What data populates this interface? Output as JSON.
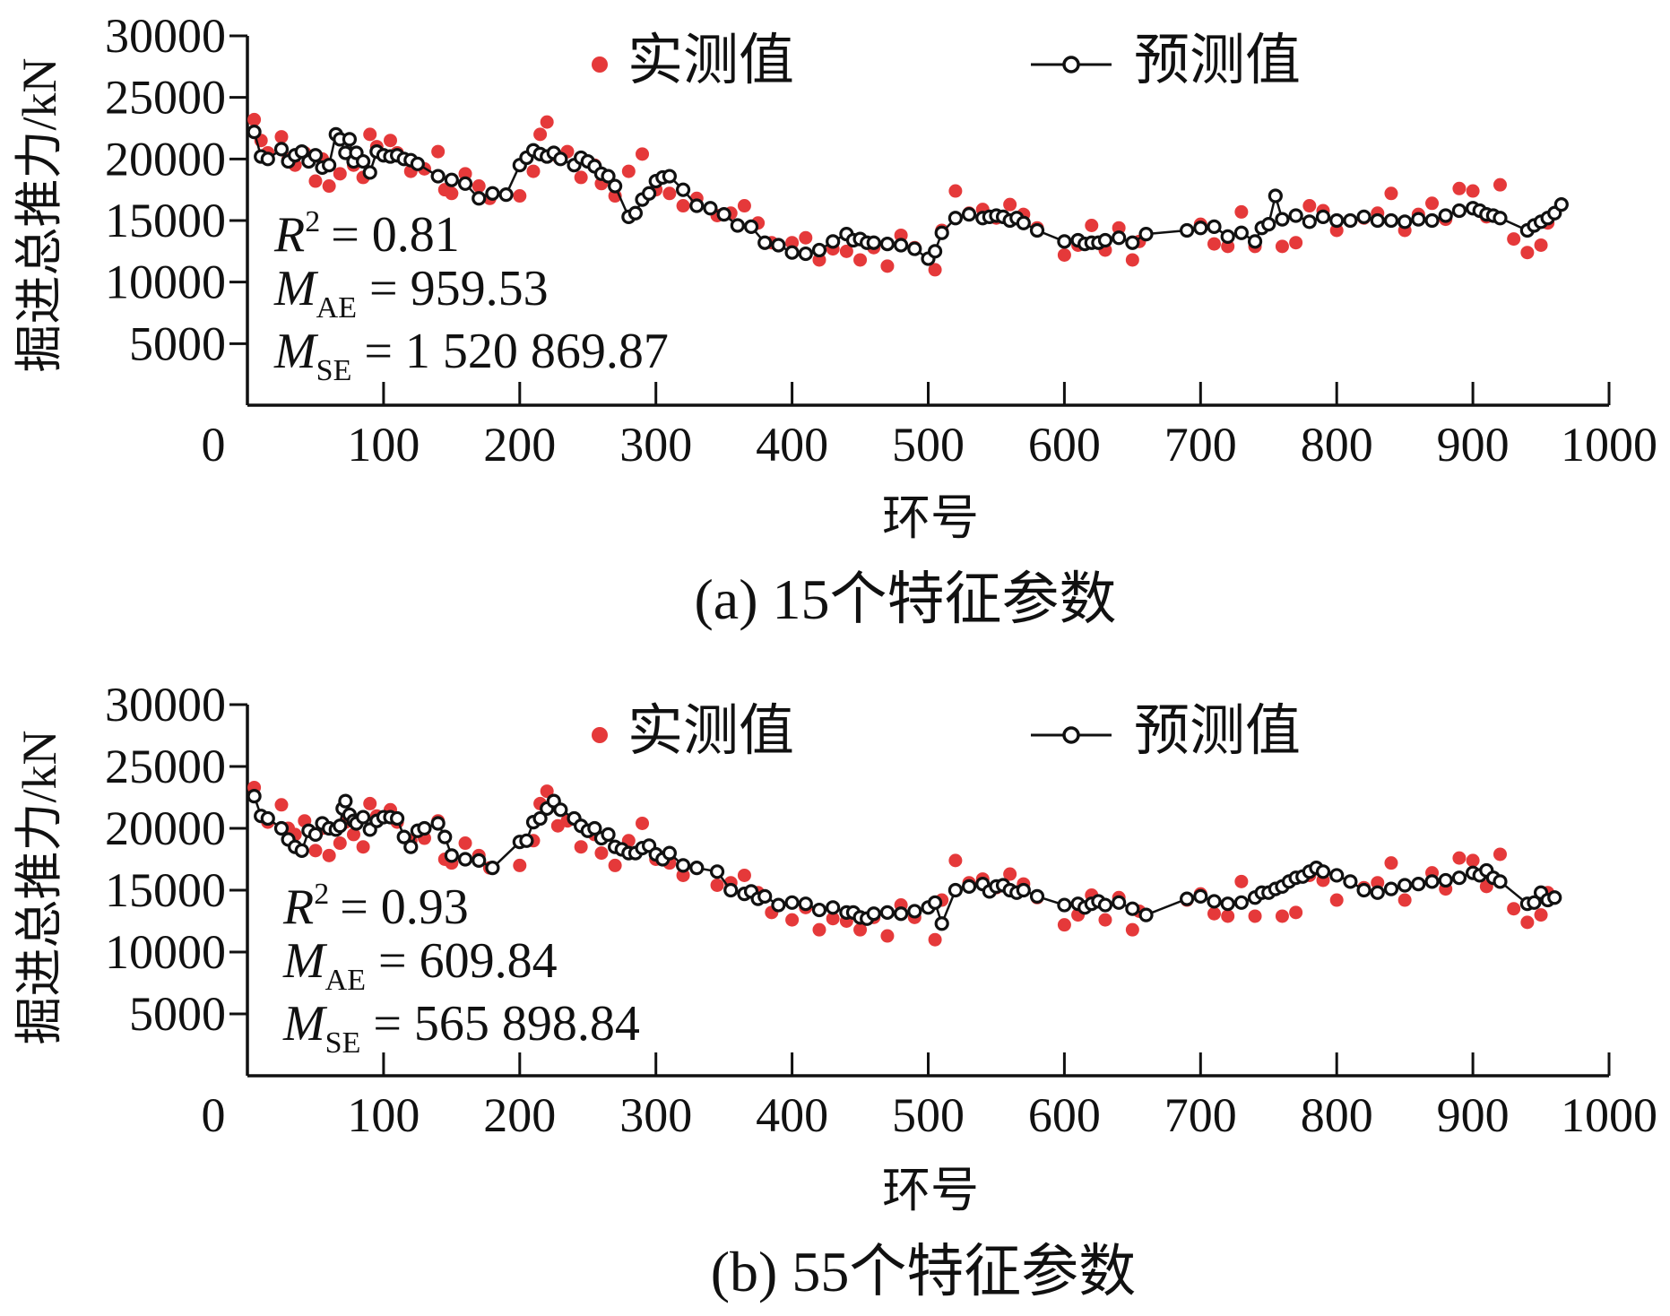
{
  "figure": {
    "y_axis_label": "掘进总推力/kN",
    "x_axis_label": "环号",
    "legend": {
      "measured": "实测值",
      "predicted": "预测值"
    },
    "colors": {
      "measured": "#e5393a",
      "predicted_line": "#111111",
      "predicted_fill": "#ffffff"
    }
  },
  "chart_data": [
    {
      "type": "scatter",
      "caption": "(a)  15个特征参数",
      "xlabel": "环号",
      "ylabel": "掘进总推力/kN",
      "xlim": [
        0,
        1000
      ],
      "ylim": [
        0,
        30000
      ],
      "x_ticks": [
        "0",
        "100",
        "200",
        "300",
        "400",
        "500",
        "600",
        "700",
        "800",
        "900",
        "1000"
      ],
      "y_ticks": [
        "5000",
        "10000",
        "15000",
        "20000",
        "25000",
        "30000"
      ],
      "stats": {
        "r2_label": "R",
        "r2_sup": "2",
        "r2_value": "= 0.81",
        "mae_label": "M",
        "mae_sub": "AE",
        "mae_value": "= 959.53",
        "mse_label": "M",
        "mse_sub": "SE",
        "mse_value": "= 1 520 869.87"
      },
      "series": [
        {
          "name": "实测值",
          "kind": "points",
          "x": [
            5,
            10,
            15,
            25,
            30,
            35,
            42,
            50,
            55,
            60,
            68,
            72,
            78,
            85,
            90,
            95,
            105,
            110,
            120,
            130,
            140,
            145,
            150,
            160,
            170,
            178,
            200,
            210,
            215,
            220,
            228,
            235,
            245,
            255,
            260,
            270,
            280,
            290,
            300,
            310,
            320,
            330,
            345,
            355,
            365,
            375,
            385,
            400,
            410,
            420,
            430,
            440,
            450,
            460,
            470,
            480,
            490,
            505,
            510,
            520,
            530,
            540,
            550,
            560,
            570,
            580,
            600,
            610,
            620,
            630,
            640,
            650,
            655,
            690,
            700,
            710,
            720,
            730,
            740,
            760,
            770,
            780,
            790,
            800,
            820,
            830,
            840,
            850,
            860,
            870,
            880,
            890,
            900,
            910,
            920,
            930,
            940,
            950,
            955
          ],
          "y": [
            23200,
            21500,
            20500,
            21800,
            20000,
            19500,
            20500,
            18200,
            20000,
            17800,
            18800,
            20500,
            19500,
            18500,
            22000,
            21000,
            21500,
            20500,
            19000,
            19200,
            20600,
            17500,
            17200,
            18800,
            17800,
            16800,
            17000,
            19000,
            22000,
            23000,
            20200,
            20600,
            18500,
            19500,
            18000,
            17000,
            19000,
            20400,
            17500,
            17200,
            16200,
            16800,
            15400,
            15600,
            16200,
            14800,
            13200,
            13200,
            13600,
            11800,
            12700,
            12500,
            11800,
            12800,
            11300,
            13800,
            12800,
            11000,
            14200,
            17400,
            15600,
            15900,
            15200,
            16300,
            15500,
            14400,
            12200,
            13000,
            14600,
            12600,
            14400,
            11800,
            13300,
            14200,
            14700,
            13100,
            12900,
            15700,
            12900,
            12900,
            13200,
            16200,
            15800,
            14200,
            15200,
            15600,
            17200,
            14200,
            15500,
            16400,
            15100,
            17600,
            17400,
            15300,
            17900,
            13500,
            12400,
            13000,
            14800
          ],
          "dot_radius": 7.5
        },
        {
          "name": "预测值",
          "kind": "line",
          "x": [
            5,
            10,
            15,
            25,
            30,
            35,
            40,
            45,
            50,
            55,
            60,
            65,
            68,
            72,
            75,
            78,
            80,
            85,
            90,
            95,
            100,
            105,
            110,
            115,
            120,
            125,
            140,
            150,
            160,
            170,
            180,
            190,
            200,
            205,
            210,
            215,
            220,
            225,
            230,
            240,
            245,
            250,
            255,
            260,
            265,
            270,
            280,
            285,
            290,
            295,
            300,
            305,
            310,
            320,
            330,
            340,
            350,
            360,
            370,
            380,
            390,
            400,
            410,
            420,
            430,
            440,
            445,
            450,
            455,
            460,
            470,
            480,
            490,
            500,
            505,
            510,
            520,
            530,
            540,
            545,
            550,
            555,
            560,
            565,
            570,
            580,
            600,
            610,
            615,
            620,
            625,
            630,
            640,
            650,
            660,
            690,
            700,
            710,
            720,
            730,
            740,
            745,
            750,
            755,
            760,
            770,
            780,
            790,
            800,
            810,
            820,
            830,
            840,
            850,
            860,
            870,
            880,
            890,
            900,
            905,
            910,
            915,
            920,
            940,
            945,
            950,
            955,
            960,
            965
          ],
          "y": [
            22200,
            20200,
            20000,
            20800,
            19800,
            20300,
            20600,
            19800,
            20300,
            19300,
            19500,
            22000,
            21600,
            20500,
            21600,
            19800,
            20500,
            19800,
            18900,
            20600,
            20300,
            20200,
            20300,
            20000,
            19900,
            19600,
            18600,
            18300,
            18000,
            16800,
            17200,
            17100,
            19500,
            20100,
            20700,
            20400,
            20200,
            20500,
            20000,
            19500,
            20100,
            19800,
            19400,
            18800,
            18600,
            17800,
            15300,
            15600,
            16700,
            17200,
            18200,
            18500,
            18600,
            17500,
            16200,
            16000,
            15500,
            14600,
            14500,
            13200,
            13000,
            12400,
            12300,
            12600,
            13300,
            13900,
            13400,
            13500,
            13200,
            13200,
            13100,
            13000,
            12700,
            11900,
            12500,
            14000,
            15200,
            15500,
            15200,
            15300,
            15400,
            15300,
            15000,
            15200,
            14800,
            14200,
            13300,
            13400,
            13100,
            13200,
            13200,
            13400,
            13600,
            13200,
            13900,
            14200,
            14400,
            14500,
            13700,
            14000,
            13300,
            14400,
            14700,
            17000,
            15100,
            15400,
            14900,
            15300,
            15000,
            15000,
            15300,
            15000,
            15000,
            14900,
            15100,
            15000,
            15400,
            15800,
            16000,
            15800,
            15500,
            15400,
            15200,
            14200,
            14600,
            14900,
            15200,
            15600,
            16300
          ],
          "marker_radius": 6.5
        }
      ]
    },
    {
      "type": "scatter",
      "caption": "(b)  55个特征参数",
      "xlabel": "环号",
      "ylabel": "掘进总推力/kN",
      "xlim": [
        0,
        1000
      ],
      "ylim": [
        0,
        30000
      ],
      "x_ticks": [
        "0",
        "100",
        "200",
        "300",
        "400",
        "500",
        "600",
        "700",
        "800",
        "900",
        "1000"
      ],
      "y_ticks": [
        "5000",
        "10000",
        "15000",
        "20000",
        "25000",
        "30000"
      ],
      "stats": {
        "r2_label": "R",
        "r2_sup": "2",
        "r2_value": "= 0.93",
        "mae_label": "M",
        "mae_sub": "AE",
        "mae_value": "= 609.84",
        "mse_label": "M",
        "mse_sub": "SE",
        "mse_value": "= 565 898.84"
      },
      "series": [
        {
          "name": "实测值",
          "kind": "points",
          "x": [
            5,
            10,
            15,
            25,
            30,
            35,
            42,
            50,
            55,
            60,
            68,
            72,
            78,
            85,
            90,
            95,
            105,
            110,
            120,
            130,
            140,
            145,
            150,
            160,
            170,
            178,
            200,
            210,
            215,
            220,
            228,
            235,
            245,
            255,
            260,
            270,
            280,
            290,
            300,
            310,
            320,
            330,
            345,
            355,
            365,
            375,
            385,
            400,
            410,
            420,
            430,
            440,
            450,
            460,
            470,
            480,
            490,
            505,
            510,
            520,
            530,
            540,
            550,
            560,
            570,
            580,
            600,
            610,
            620,
            630,
            640,
            650,
            655,
            690,
            700,
            710,
            720,
            730,
            740,
            760,
            770,
            780,
            790,
            800,
            820,
            830,
            840,
            850,
            860,
            870,
            880,
            890,
            900,
            910,
            920,
            930,
            940,
            950,
            955
          ],
          "y": [
            23300,
            21000,
            20500,
            21900,
            20000,
            19500,
            20600,
            18200,
            20000,
            17800,
            18800,
            20500,
            19500,
            18500,
            22000,
            21000,
            21500,
            20500,
            19000,
            19200,
            20600,
            17500,
            17200,
            18800,
            17800,
            16800,
            17000,
            19000,
            22000,
            23000,
            20200,
            20600,
            18500,
            19500,
            18000,
            17000,
            19000,
            20400,
            17500,
            17200,
            16200,
            16800,
            15400,
            15600,
            16200,
            14800,
            13200,
            12600,
            13600,
            11800,
            12700,
            12500,
            11800,
            12800,
            11300,
            13800,
            12800,
            11000,
            14200,
            17400,
            15600,
            15900,
            15200,
            16300,
            15500,
            14400,
            12200,
            13000,
            14600,
            12600,
            14400,
            11800,
            13300,
            14200,
            14700,
            13100,
            12900,
            15700,
            12900,
            12900,
            13200,
            16200,
            15800,
            14200,
            15200,
            15600,
            17200,
            14200,
            15500,
            16400,
            15100,
            17600,
            17400,
            15300,
            17900,
            13500,
            12400,
            13000,
            14800
          ],
          "dot_radius": 7.5
        },
        {
          "name": "预测值",
          "kind": "line",
          "x": [
            5,
            10,
            15,
            25,
            30,
            35,
            40,
            45,
            50,
            55,
            60,
            65,
            68,
            70,
            72,
            75,
            78,
            80,
            85,
            90,
            95,
            100,
            105,
            110,
            115,
            120,
            125,
            130,
            140,
            145,
            150,
            160,
            170,
            180,
            200,
            205,
            210,
            215,
            220,
            225,
            230,
            240,
            245,
            250,
            255,
            260,
            265,
            270,
            275,
            280,
            285,
            290,
            295,
            300,
            305,
            310,
            320,
            330,
            345,
            355,
            365,
            370,
            375,
            380,
            390,
            400,
            410,
            420,
            430,
            440,
            445,
            450,
            455,
            460,
            470,
            480,
            490,
            500,
            505,
            510,
            520,
            530,
            540,
            545,
            550,
            555,
            560,
            565,
            570,
            580,
            600,
            610,
            615,
            620,
            625,
            630,
            640,
            650,
            660,
            690,
            700,
            710,
            720,
            730,
            740,
            745,
            750,
            755,
            760,
            765,
            770,
            775,
            780,
            785,
            790,
            800,
            810,
            820,
            830,
            840,
            850,
            860,
            870,
            880,
            890,
            900,
            905,
            910,
            915,
            920,
            940,
            945,
            950,
            955,
            960
          ],
          "y": [
            22600,
            21000,
            20800,
            20000,
            19100,
            18500,
            18200,
            19800,
            19500,
            20400,
            20000,
            19900,
            20200,
            21600,
            22200,
            21100,
            20600,
            20400,
            20900,
            19900,
            20600,
            20900,
            20900,
            20800,
            19300,
            18500,
            19800,
            20000,
            20400,
            19300,
            17800,
            17500,
            17400,
            16800,
            18900,
            19000,
            20500,
            20800,
            21600,
            22200,
            21500,
            20800,
            20200,
            19800,
            20000,
            19200,
            19500,
            18500,
            18300,
            18000,
            18000,
            18400,
            18600,
            17900,
            17500,
            18000,
            17000,
            16800,
            16500,
            15000,
            14700,
            14900,
            14300,
            14500,
            13800,
            14000,
            13900,
            13400,
            13600,
            13200,
            13200,
            12800,
            12700,
            13100,
            13200,
            13100,
            13300,
            13600,
            14000,
            12300,
            15000,
            15300,
            15500,
            14900,
            15300,
            15400,
            15000,
            14800,
            15000,
            14500,
            13800,
            13900,
            13600,
            13900,
            14100,
            13800,
            14000,
            13500,
            13000,
            14300,
            14500,
            14100,
            13900,
            14000,
            14400,
            14800,
            14800,
            15100,
            15300,
            15700,
            16000,
            16100,
            16500,
            16800,
            16500,
            16200,
            15700,
            15000,
            14800,
            15100,
            15400,
            15500,
            15700,
            15800,
            16000,
            16400,
            16200,
            16600,
            16000,
            15700,
            13900,
            14000,
            14800,
            14200,
            14400
          ],
          "marker_radius": 6.5
        }
      ]
    }
  ]
}
